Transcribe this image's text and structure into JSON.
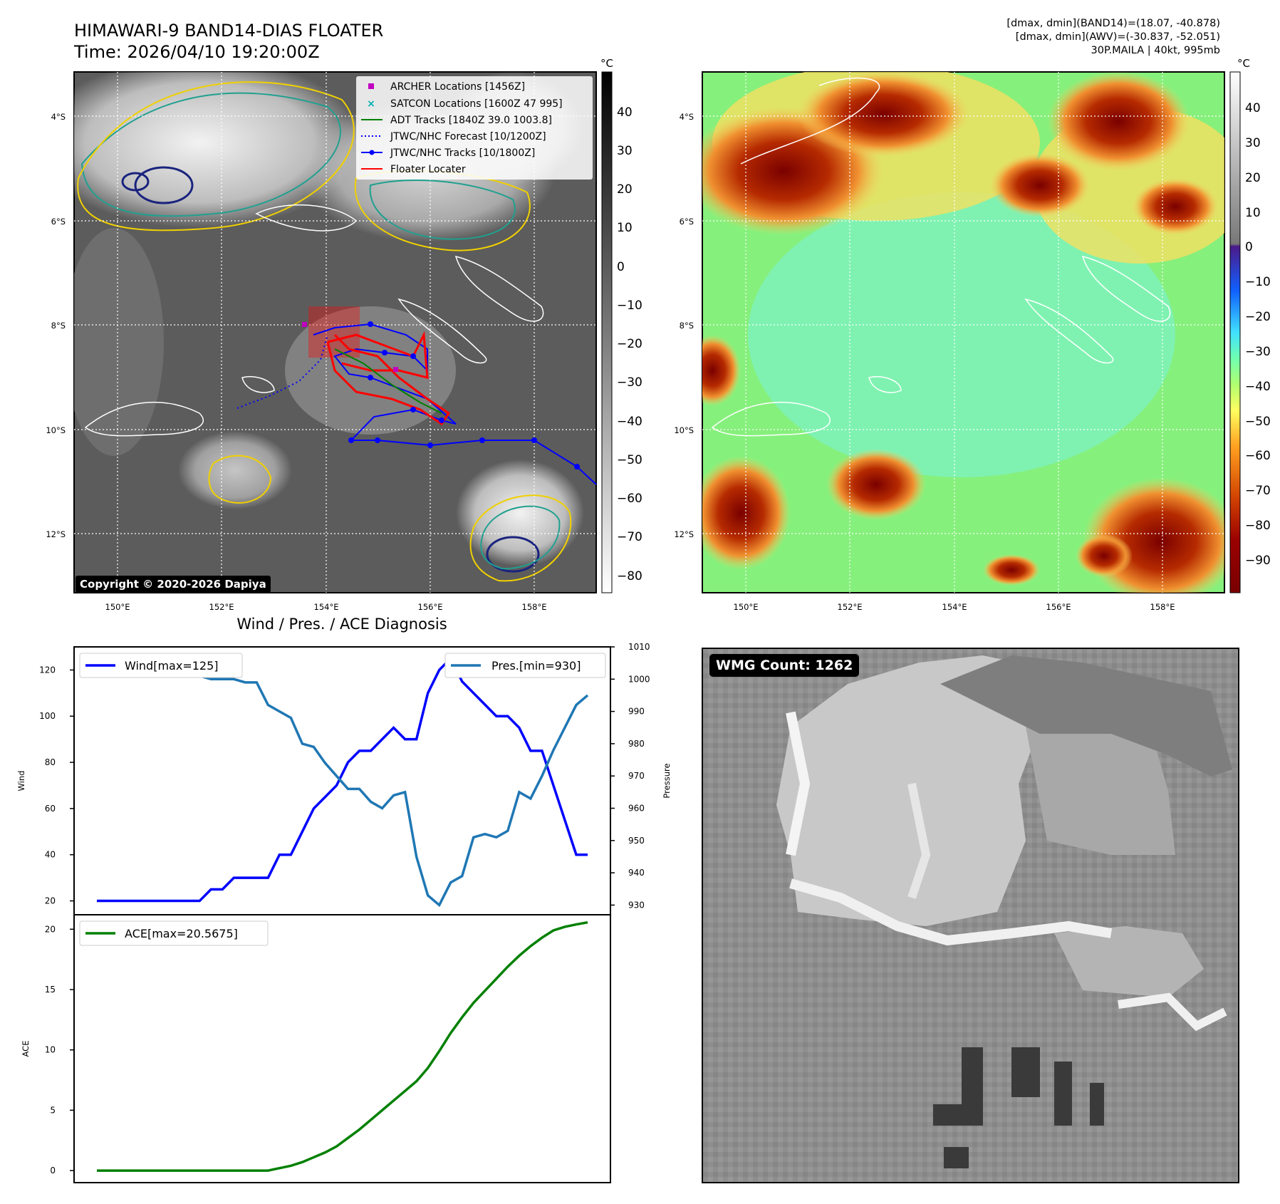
{
  "header": {
    "title_line1": "HIMAWARI-9 BAND14-DIAS FLOATER",
    "title_line2": "Time: 2026/04/10 19:20:00Z",
    "stats_line1": "[dmax, dmin](BAND14)=(18.07, -40.878)",
    "stats_line2": "[dmax, dmin](AWV)=(-30.837, -52.051)",
    "stats_line3": "30P.MAILA | 40kt, 995mb"
  },
  "copyright": "Copyright © 2020-2026 Dapiya",
  "map_axes": {
    "lat_ticks": [
      "4°S",
      "6°S",
      "8°S",
      "10°S",
      "12°S"
    ],
    "lon_ticks": [
      "150°E",
      "152°E",
      "154°E",
      "156°E",
      "158°E"
    ]
  },
  "colorbar_left": {
    "unit": "°C",
    "ticks": [
      "40",
      "30",
      "20",
      "10",
      "0",
      "−10",
      "−20",
      "−30",
      "−40",
      "−50",
      "−60",
      "−70",
      "−80"
    ]
  },
  "colorbar_right": {
    "unit": "°C",
    "ticks": [
      "40",
      "30",
      "20",
      "10",
      "0",
      "−10",
      "−20",
      "−30",
      "−40",
      "−50",
      "−60",
      "−70",
      "−80",
      "−90"
    ]
  },
  "map_legend": [
    {
      "label": "ARCHER Locations [1456Z]",
      "marker": "square",
      "color": "#c000c0"
    },
    {
      "label": "SATCON Locations [1600Z 47 995]",
      "marker": "x",
      "color": "#00b0b0"
    },
    {
      "label": "ADT Tracks [1840Z 39.0 1003.8]",
      "marker": "line",
      "color": "#008000"
    },
    {
      "label": "JTWC/NHC Forecast [10/1200Z]",
      "marker": "dotted",
      "color": "#0000ff"
    },
    {
      "label": "JTWC/NHC Tracks [10/1800Z]",
      "marker": "line-dot",
      "color": "#0000ff"
    },
    {
      "label": "Floater Locater",
      "marker": "line",
      "color": "#ff0000"
    }
  ],
  "diagnosis_title": "Wind / Pres. / ACE Diagnosis",
  "wmg_label": "WMG Count: 1262",
  "chart_data": [
    {
      "type": "line",
      "ylabel": "Wind",
      "y2label": "Pressure",
      "ylim": [
        14,
        130
      ],
      "y2lim": [
        927,
        1010
      ],
      "yticks": [
        20,
        40,
        60,
        80,
        100,
        120
      ],
      "y2ticks": [
        930,
        940,
        950,
        960,
        970,
        980,
        990,
        1000,
        1010
      ],
      "series": [
        {
          "name": "Wind[max=125]",
          "color": "#0000ff",
          "values": [
            20,
            20,
            20,
            20,
            20,
            20,
            20,
            20,
            20,
            20,
            25,
            25,
            30,
            30,
            30,
            30,
            40,
            40,
            50,
            60,
            65,
            70,
            80,
            85,
            85,
            90,
            95,
            90,
            90,
            110,
            120,
            125,
            115,
            110,
            105,
            100,
            100,
            95,
            85,
            85,
            70,
            55,
            40,
            40
          ]
        },
        {
          "name": "Pres.[min=930]",
          "axis": "right",
          "color": "#1f77b4",
          "values": [
            1007,
            1007,
            1007,
            1007,
            1005,
            1003,
            1003,
            1001,
            1001,
            1001,
            1000,
            1000,
            1000,
            999,
            999,
            992,
            990,
            988,
            980,
            979,
            974,
            970,
            966,
            966,
            962,
            960,
            964,
            965,
            945,
            933,
            930,
            937,
            939,
            951,
            952,
            951,
            953,
            965,
            963,
            970,
            978,
            985,
            992,
            995
          ]
        }
      ]
    },
    {
      "type": "line",
      "ylabel": "ACE",
      "ylim": [
        -1,
        21.2
      ],
      "yticks": [
        0,
        5,
        10,
        15,
        20
      ],
      "series": [
        {
          "name": "ACE[max=20.5675]",
          "color": "#008000",
          "values": [
            0,
            0,
            0,
            0,
            0,
            0,
            0,
            0,
            0,
            0,
            0,
            0,
            0,
            0,
            0,
            0,
            0.2,
            0.4,
            0.7,
            1.1,
            1.5,
            2.0,
            2.7,
            3.4,
            4.2,
            5.0,
            5.8,
            6.6,
            7.4,
            8.5,
            9.9,
            11.4,
            12.7,
            13.9,
            14.9,
            15.9,
            16.9,
            17.8,
            18.6,
            19.3,
            19.9,
            20.2,
            20.4,
            20.5675
          ]
        }
      ]
    }
  ]
}
